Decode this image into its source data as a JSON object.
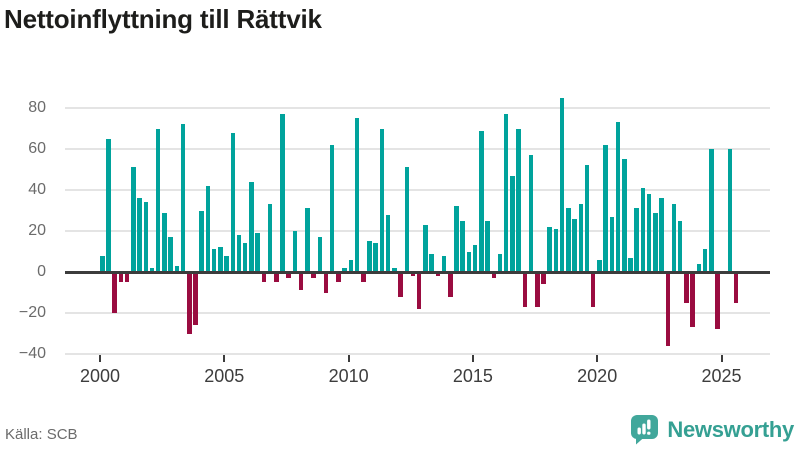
{
  "title": "Nettoinflyttning till Rättvik",
  "source": "Källa: SCB",
  "brand": {
    "name": "Newsworthy",
    "icon": "bar-chart-speech-bubble-icon",
    "color": "#35a093"
  },
  "colors": {
    "positive": "#00a39c",
    "negative": "#9a0c40",
    "grid": "#e4e4e4",
    "zero_axis": "#3c3c3c",
    "title_text": "#1d1d1b",
    "y_tick_text": "#6b6b6b",
    "x_tick_text": "#3d3d3d",
    "source_text": "#6b6b6b"
  },
  "chart_data": {
    "type": "bar",
    "title": "Nettoinflyttning till Rättvik",
    "xlabel": "",
    "ylabel": "",
    "frequency": "quarterly",
    "start_quarter": "2000Q1",
    "end_quarter": "2025Q3",
    "y_ticks": [
      80,
      60,
      40,
      20,
      0,
      -20,
      -40
    ],
    "ylim": [
      -42,
      88
    ],
    "x_tick_labels": [
      "2000",
      "2005",
      "2010",
      "2015",
      "2020",
      "2025"
    ],
    "grid": "horizontal",
    "legend": "none",
    "series": [
      {
        "year": 2000,
        "values": [
          8,
          65,
          -20,
          -5
        ]
      },
      {
        "year": 2001,
        "values": [
          -5,
          51,
          36,
          34
        ]
      },
      {
        "year": 2002,
        "values": [
          2,
          70,
          29,
          17
        ]
      },
      {
        "year": 2003,
        "values": [
          3,
          72,
          -30,
          -26
        ]
      },
      {
        "year": 2004,
        "values": [
          30,
          42,
          11,
          12
        ]
      },
      {
        "year": 2005,
        "values": [
          8,
          68,
          18,
          14
        ]
      },
      {
        "year": 2006,
        "values": [
          44,
          19,
          -5,
          33
        ]
      },
      {
        "year": 2007,
        "values": [
          -5,
          77,
          -3,
          20
        ]
      },
      {
        "year": 2008,
        "values": [
          -9,
          31,
          -3,
          17
        ]
      },
      {
        "year": 2009,
        "values": [
          -10,
          62,
          -5,
          2
        ]
      },
      {
        "year": 2010,
        "values": [
          6,
          75,
          -5,
          15
        ]
      },
      {
        "year": 2011,
        "values": [
          14,
          70,
          28,
          2
        ]
      },
      {
        "year": 2012,
        "values": [
          -12,
          51,
          -2,
          -18
        ]
      },
      {
        "year": 2013,
        "values": [
          23,
          9,
          -2,
          8
        ]
      },
      {
        "year": 2014,
        "values": [
          -12,
          32,
          25,
          10
        ]
      },
      {
        "year": 2015,
        "values": [
          13,
          69,
          25,
          -3
        ]
      },
      {
        "year": 2016,
        "values": [
          9,
          77,
          47,
          70
        ]
      },
      {
        "year": 2017,
        "values": [
          -17,
          57,
          -17,
          -6
        ]
      },
      {
        "year": 2018,
        "values": [
          22,
          21,
          85,
          31
        ]
      },
      {
        "year": 2019,
        "values": [
          26,
          33,
          52,
          -17
        ]
      },
      {
        "year": 2020,
        "values": [
          6,
          62,
          27,
          73
        ]
      },
      {
        "year": 2021,
        "values": [
          55,
          7,
          31,
          41
        ]
      },
      {
        "year": 2022,
        "values": [
          38,
          29,
          36,
          -36
        ]
      },
      {
        "year": 2023,
        "values": [
          33,
          25,
          -15,
          -27
        ]
      },
      {
        "year": 2024,
        "values": [
          4,
          11,
          60,
          -28
        ]
      },
      {
        "year": 2025,
        "values": [
          0,
          60,
          -15
        ]
      }
    ]
  }
}
